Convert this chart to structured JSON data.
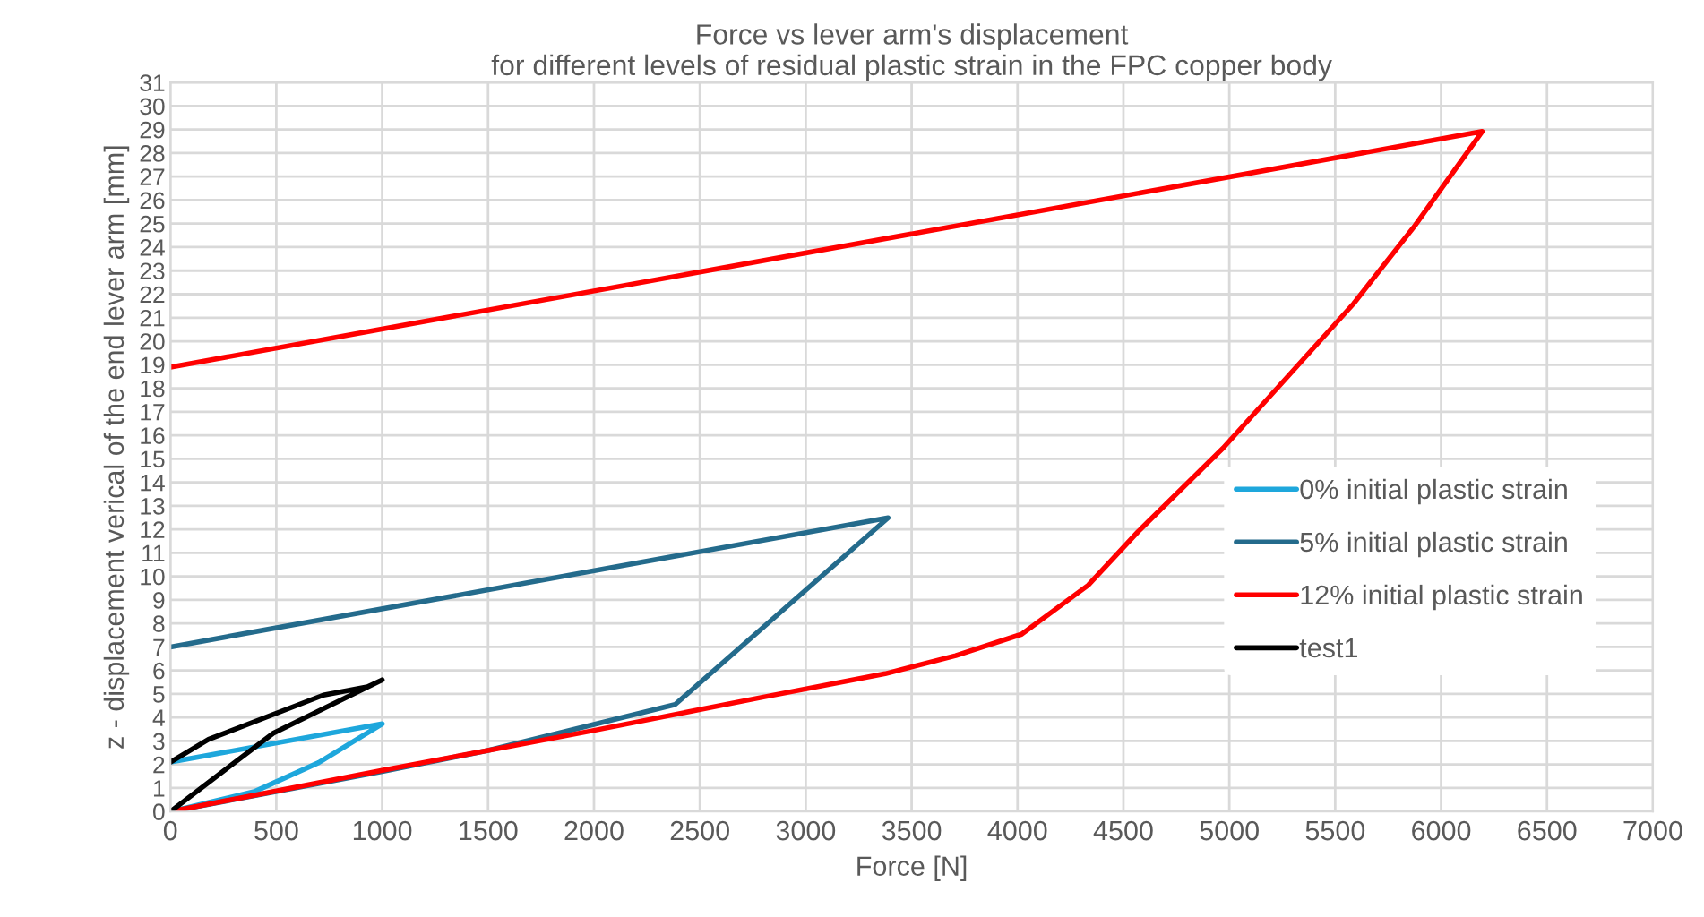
{
  "chart_data": {
    "type": "line",
    "title": "Force vs lever arm's displacement\nfor different levels of residual plastic strain in the FPC copper body",
    "xlabel": "Force [N]",
    "ylabel": "z - displacement verical of the end lever arm [mm]",
    "series": [
      {
        "name": "0% initial plastic strain",
        "color": "#1ea7dc",
        "x": [
          0,
          400,
          700,
          1000,
          0
        ],
        "values": [
          0,
          0.86,
          2.08,
          3.73,
          2.1
        ]
      },
      {
        "name": "5% initial plastic strain",
        "color": "#246b8c",
        "x": [
          0,
          1000,
          1500,
          2383,
          3389,
          0
        ],
        "values": [
          0,
          1.7,
          2.6,
          4.55,
          12.49,
          7.0
        ]
      },
      {
        "name": "12% initial plastic strain",
        "color": "#ff0000",
        "x": [
          0,
          1000,
          1500,
          2000,
          2800,
          3375,
          3708,
          4019,
          4333,
          4569,
          4971,
          5587,
          5875,
          6194,
          0
        ],
        "values": [
          0,
          1.75,
          2.6,
          3.45,
          4.87,
          5.86,
          6.63,
          7.54,
          9.62,
          11.9,
          15.46,
          21.6,
          24.9,
          28.92,
          18.9
        ]
      },
      {
        "name": "test1",
        "color": "#000000",
        "x": [
          0,
          180,
          486,
          1000,
          930,
          722,
          180,
          0
        ],
        "values": [
          0,
          1.24,
          3.33,
          5.6,
          5.3,
          4.95,
          3.07,
          2.1
        ]
      }
    ],
    "xlim": [
      0,
      7000
    ],
    "ylim": [
      0,
      31
    ],
    "xticks": [
      0,
      500,
      1000,
      1500,
      2000,
      2500,
      3000,
      3500,
      4000,
      4500,
      5000,
      5500,
      6000,
      6500,
      7000
    ],
    "yticks": [
      0,
      1,
      2,
      3,
      4,
      5,
      6,
      7,
      8,
      9,
      10,
      11,
      12,
      13,
      14,
      15,
      16,
      17,
      18,
      19,
      20,
      21,
      22,
      23,
      24,
      25,
      26,
      27,
      28,
      29,
      30,
      31
    ],
    "grid": true,
    "legend": "right",
    "marker": "none",
    "line_style": "solid"
  }
}
